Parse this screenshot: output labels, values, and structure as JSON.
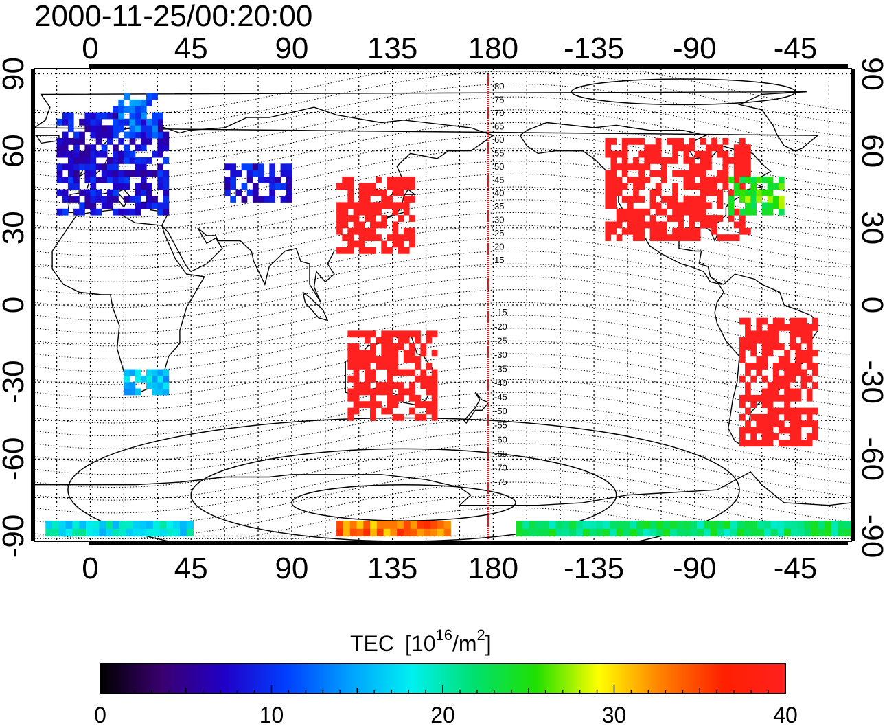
{
  "title": "2000-11-25/00:20:00",
  "map": {
    "lon_labels_top": [
      "0",
      "45",
      "90",
      "135",
      "180",
      "-135",
      "-90",
      "-45"
    ],
    "lon_labels_bottom": [
      "0",
      "45",
      "90",
      "135",
      "180",
      "-135",
      "-90",
      "-45"
    ],
    "lat_labels_left": [
      "90",
      "60",
      "30",
      "0",
      "-30",
      "-60",
      "-90"
    ],
    "lat_labels_right": [
      "90",
      "60",
      "30",
      "0",
      "-30",
      "-60",
      "-90"
    ],
    "lon_ticks": [
      0,
      45,
      90,
      135,
      180,
      225,
      270,
      315
    ],
    "lat_ticks": [
      90,
      60,
      30,
      0,
      -30,
      -60,
      -90
    ],
    "lon_range": [
      -25,
      340
    ],
    "lat_range": [
      -92,
      92
    ],
    "magnetic_lat_labels_north": [
      "80",
      "75",
      "70",
      "65",
      "60",
      "55",
      "50",
      "45",
      "40",
      "35",
      "30",
      "25",
      "20",
      "15"
    ],
    "magnetic_lat_labels_south": [
      "-15",
      "-20",
      "-25",
      "-30",
      "-35",
      "-40",
      "-45",
      "-50",
      "-55",
      "-60",
      "-65",
      "-70",
      "-75"
    ],
    "terminator_line_color": "#d42020"
  },
  "colorbar": {
    "title": "TEC",
    "unit_base": "[10",
    "unit_exp": "16",
    "unit_mid": "/m",
    "unit_exp2": "2",
    "unit_end": "]",
    "tick_labels": [
      "0",
      "10",
      "20",
      "30",
      "40"
    ],
    "range": [
      0,
      40
    ],
    "stops": [
      "#000000",
      "#3a0070",
      "#2000c8",
      "#0040ff",
      "#00a0ff",
      "#00f0f0",
      "#00e070",
      "#20e000",
      "#ffff00",
      "#ff8000",
      "#ff2000",
      "#ff2020"
    ]
  },
  "chart_data": {
    "type": "heatmap",
    "title": "2000-11-25/00:20:00",
    "colorbar_label": "TEC [10^16/m^2]",
    "value_range": [
      0,
      40
    ],
    "regions": [
      {
        "lon": [
          -15,
          35
        ],
        "lat": [
          35,
          75
        ],
        "tec": 8
      },
      {
        "lon": [
          10,
          30
        ],
        "lat": [
          65,
          82
        ],
        "tec": 12
      },
      {
        "lon": [
          110,
          145
        ],
        "lat": [
          20,
          50
        ],
        "tec": 40
      },
      {
        "lon": [
          230,
          295
        ],
        "lat": [
          25,
          65
        ],
        "tec": 40
      },
      {
        "lon": [
          285,
          310
        ],
        "lat": [
          35,
          50
        ],
        "tec": 25
      },
      {
        "lon": [
          290,
          325
        ],
        "lat": [
          -55,
          -5
        ],
        "tec": 40
      },
      {
        "lon": [
          115,
          155
        ],
        "lat": [
          -45,
          -10
        ],
        "tec": 40
      },
      {
        "lon": [
          15,
          35
        ],
        "lat": [
          -35,
          -25
        ],
        "tec": 16
      },
      {
        "lon": [
          60,
          90
        ],
        "lat": [
          40,
          55
        ],
        "tec": 8
      },
      {
        "lon": [
          110,
          160
        ],
        "lat": [
          -90,
          -85
        ],
        "tec": 33
      },
      {
        "lon": [
          -20,
          45
        ],
        "lat": [
          -90,
          -85
        ],
        "tec": 18
      },
      {
        "lon": [
          190,
          340
        ],
        "lat": [
          -90,
          -85
        ],
        "tec": 22
      }
    ]
  }
}
